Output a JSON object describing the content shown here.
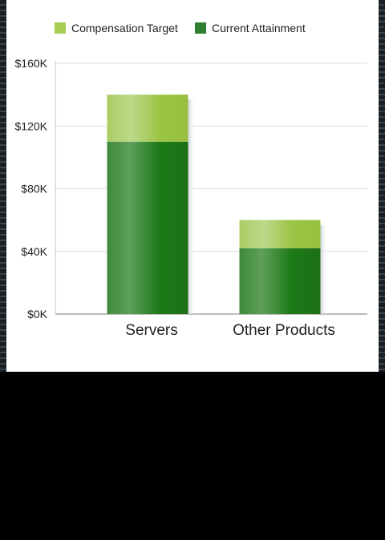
{
  "chart_data": {
    "type": "bar",
    "stacked": true,
    "categories": [
      "Servers",
      "Other Products"
    ],
    "series": [
      {
        "name": "Current Attainment",
        "values": [
          110000,
          42000
        ],
        "color": "#1e7a1a"
      },
      {
        "name": "Compensation Target",
        "values": [
          30000,
          18000
        ],
        "color": "#a6cc52"
      }
    ],
    "legend": {
      "position": "top",
      "items": [
        {
          "label": "Compensation Target",
          "color": "#a6cc52"
        },
        {
          "label": "Current Attainment",
          "color": "#2e7f32"
        }
      ]
    },
    "yaxis": {
      "ticks": [
        {
          "value": 0,
          "label": "$0K"
        },
        {
          "value": 40000,
          "label": "$40K"
        },
        {
          "value": 80000,
          "label": "$80K"
        },
        {
          "value": 120000,
          "label": "$120K"
        },
        {
          "value": 160000,
          "label": "$160K"
        }
      ]
    },
    "ylim": [
      0,
      160000
    ],
    "grid": true
  }
}
